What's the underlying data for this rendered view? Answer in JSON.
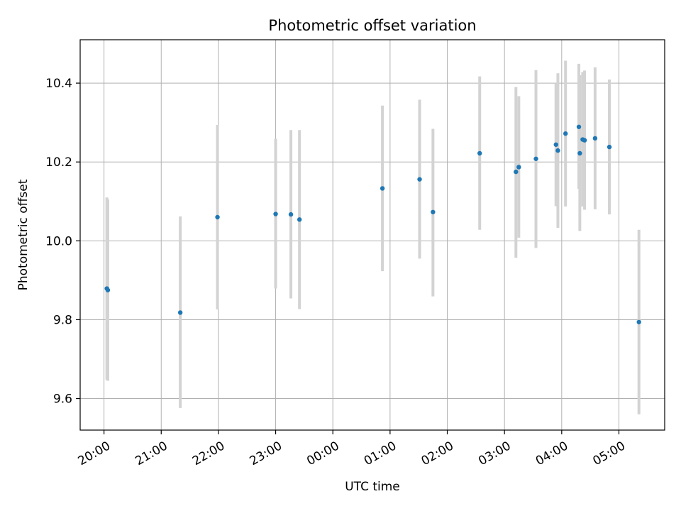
{
  "chart_data": {
    "type": "scatter",
    "title": "Photometric offset variation",
    "xlabel": "UTC time",
    "ylabel": "Photometric offset",
    "x_unit": "UTC",
    "xlim": [
      "2023-01-01T19:35",
      "2023-01-02T05:48"
    ],
    "ylim": [
      9.52,
      10.51
    ],
    "grid": true,
    "x_ticks": [
      {
        "t": "2023-01-01T20:00",
        "label": "20:00"
      },
      {
        "t": "2023-01-01T21:00",
        "label": "21:00"
      },
      {
        "t": "2023-01-01T22:00",
        "label": "22:00"
      },
      {
        "t": "2023-01-01T23:00",
        "label": "23:00"
      },
      {
        "t": "2023-01-02T00:00",
        "label": "00:00"
      },
      {
        "t": "2023-01-02T01:00",
        "label": "01:00"
      },
      {
        "t": "2023-01-02T02:00",
        "label": "02:00"
      },
      {
        "t": "2023-01-02T03:00",
        "label": "03:00"
      },
      {
        "t": "2023-01-02T04:00",
        "label": "04:00"
      },
      {
        "t": "2023-01-02T05:00",
        "label": "05:00"
      }
    ],
    "y_ticks": [
      {
        "v": 9.6,
        "label": "9.6"
      },
      {
        "v": 9.8,
        "label": "9.8"
      },
      {
        "v": 10.0,
        "label": "10.0"
      },
      {
        "v": 10.2,
        "label": "10.2"
      },
      {
        "v": 10.4,
        "label": "10.4"
      }
    ],
    "colors": {
      "points": "#1f77b4",
      "errorbars": "#d3d3d3",
      "grid": "#b0b0b0"
    },
    "series": [
      {
        "points": [
          {
            "x": "2023-01-01T20:03",
            "y": 9.879,
            "lo": 9.648,
            "hi": 10.11
          },
          {
            "x": "2023-01-01T20:04",
            "y": 9.875,
            "lo": 9.645,
            "hi": 10.105
          },
          {
            "x": "2023-01-01T21:20",
            "y": 9.818,
            "lo": 9.576,
            "hi": 10.062
          },
          {
            "x": "2023-01-01T21:59",
            "y": 10.06,
            "lo": 9.826,
            "hi": 10.294
          },
          {
            "x": "2023-01-01T23:00",
            "y": 10.068,
            "lo": 9.879,
            "hi": 10.259
          },
          {
            "x": "2023-01-01T23:16",
            "y": 10.067,
            "lo": 9.854,
            "hi": 10.281
          },
          {
            "x": "2023-01-01T23:25",
            "y": 10.054,
            "lo": 9.827,
            "hi": 10.281
          },
          {
            "x": "2023-01-02T00:52",
            "y": 10.133,
            "lo": 9.923,
            "hi": 10.343
          },
          {
            "x": "2023-01-02T01:31",
            "y": 10.156,
            "lo": 9.955,
            "hi": 10.358
          },
          {
            "x": "2023-01-02T01:45",
            "y": 10.073,
            "lo": 9.859,
            "hi": 10.284
          },
          {
            "x": "2023-01-02T02:34",
            "y": 10.222,
            "lo": 10.028,
            "hi": 10.417
          },
          {
            "x": "2023-01-02T03:12",
            "y": 10.175,
            "lo": 9.957,
            "hi": 10.39
          },
          {
            "x": "2023-01-02T03:15",
            "y": 10.187,
            "lo": 10.008,
            "hi": 10.367
          },
          {
            "x": "2023-01-02T03:33",
            "y": 10.208,
            "lo": 9.982,
            "hi": 10.433
          },
          {
            "x": "2023-01-02T03:54",
            "y": 10.244,
            "lo": 10.088,
            "hi": 10.4
          },
          {
            "x": "2023-01-02T03:56",
            "y": 10.229,
            "lo": 10.033,
            "hi": 10.425
          },
          {
            "x": "2023-01-02T04:04",
            "y": 10.272,
            "lo": 10.087,
            "hi": 10.457
          },
          {
            "x": "2023-01-02T04:18",
            "y": 10.289,
            "lo": 10.132,
            "hi": 10.449
          },
          {
            "x": "2023-01-02T04:19",
            "y": 10.222,
            "lo": 10.025,
            "hi": 10.42
          },
          {
            "x": "2023-01-02T04:22",
            "y": 10.257,
            "lo": 10.087,
            "hi": 10.428
          },
          {
            "x": "2023-01-02T04:24",
            "y": 10.255,
            "lo": 10.079,
            "hi": 10.432
          },
          {
            "x": "2023-01-02T04:35",
            "y": 10.26,
            "lo": 10.08,
            "hi": 10.44
          },
          {
            "x": "2023-01-02T04:50",
            "y": 10.238,
            "lo": 10.067,
            "hi": 10.409
          },
          {
            "x": "2023-01-02T05:21",
            "y": 9.794,
            "lo": 9.56,
            "hi": 10.028
          }
        ]
      }
    ]
  }
}
